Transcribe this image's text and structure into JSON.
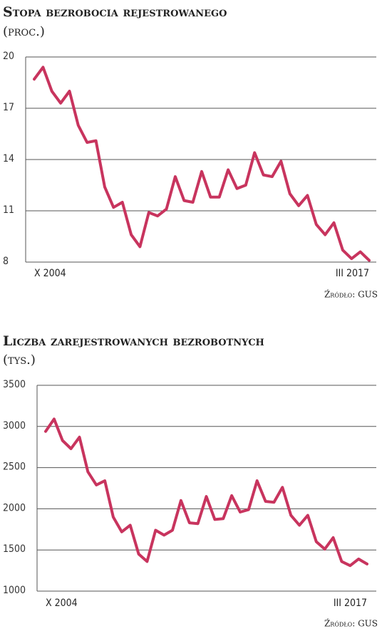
{
  "chart_data": [
    {
      "type": "line",
      "title": "Stopa bezrobocia rejestrowanego",
      "subtitle": "(proc.)",
      "source": "Źródło: GUS",
      "categories": [
        "X 2004",
        null,
        null,
        null,
        null,
        null,
        null,
        null,
        null,
        null,
        null,
        null,
        null,
        null,
        null,
        null,
        null,
        null,
        null,
        null,
        null,
        null,
        null,
        null,
        null,
        null,
        null,
        null,
        null,
        null,
        null,
        null,
        null,
        null,
        null,
        null,
        null,
        null,
        "III 2017"
      ],
      "series": [
        {
          "color": "#c8345e",
          "values": [
            18.7,
            19.4,
            18.0,
            17.3,
            18.0,
            16.0,
            15.0,
            15.1,
            12.4,
            11.2,
            11.5,
            9.6,
            8.9,
            10.9,
            10.7,
            11.1,
            13.0,
            11.6,
            11.5,
            13.3,
            11.8,
            11.8,
            13.4,
            12.3,
            12.5,
            14.4,
            13.1,
            13.0,
            13.9,
            12.0,
            11.3,
            11.9,
            10.2,
            9.6,
            10.3,
            8.7,
            8.2,
            8.6,
            8.1
          ]
        }
      ],
      "ylim": [
        8,
        20
      ],
      "yticks": [
        8,
        11,
        14,
        17,
        20
      ],
      "grid": true
    },
    {
      "type": "line",
      "title": "Liczba zarejestrowanych bezrobotnych",
      "subtitle": "(tys.)",
      "source": "Źródło: GUS",
      "categories": [
        "X 2004",
        null,
        null,
        null,
        null,
        null,
        null,
        null,
        null,
        null,
        null,
        null,
        null,
        null,
        null,
        null,
        null,
        null,
        null,
        null,
        null,
        null,
        null,
        null,
        null,
        null,
        null,
        null,
        null,
        null,
        null,
        null,
        null,
        null,
        null,
        null,
        null,
        null,
        "III 2017"
      ],
      "series": [
        {
          "color": "#c8345e",
          "values": [
            2940,
            3090,
            2830,
            2730,
            2870,
            2450,
            2290,
            2340,
            1900,
            1720,
            1800,
            1450,
            1360,
            1740,
            1680,
            1740,
            2100,
            1830,
            1820,
            2150,
            1870,
            1880,
            2160,
            1960,
            1990,
            2340,
            2090,
            2080,
            2260,
            1920,
            1800,
            1920,
            1600,
            1510,
            1650,
            1360,
            1310,
            1390,
            1330
          ]
        }
      ],
      "ylim": [
        1000,
        3500
      ],
      "yticks": [
        1000,
        1500,
        2000,
        2500,
        3000,
        3500
      ],
      "grid": true
    }
  ]
}
